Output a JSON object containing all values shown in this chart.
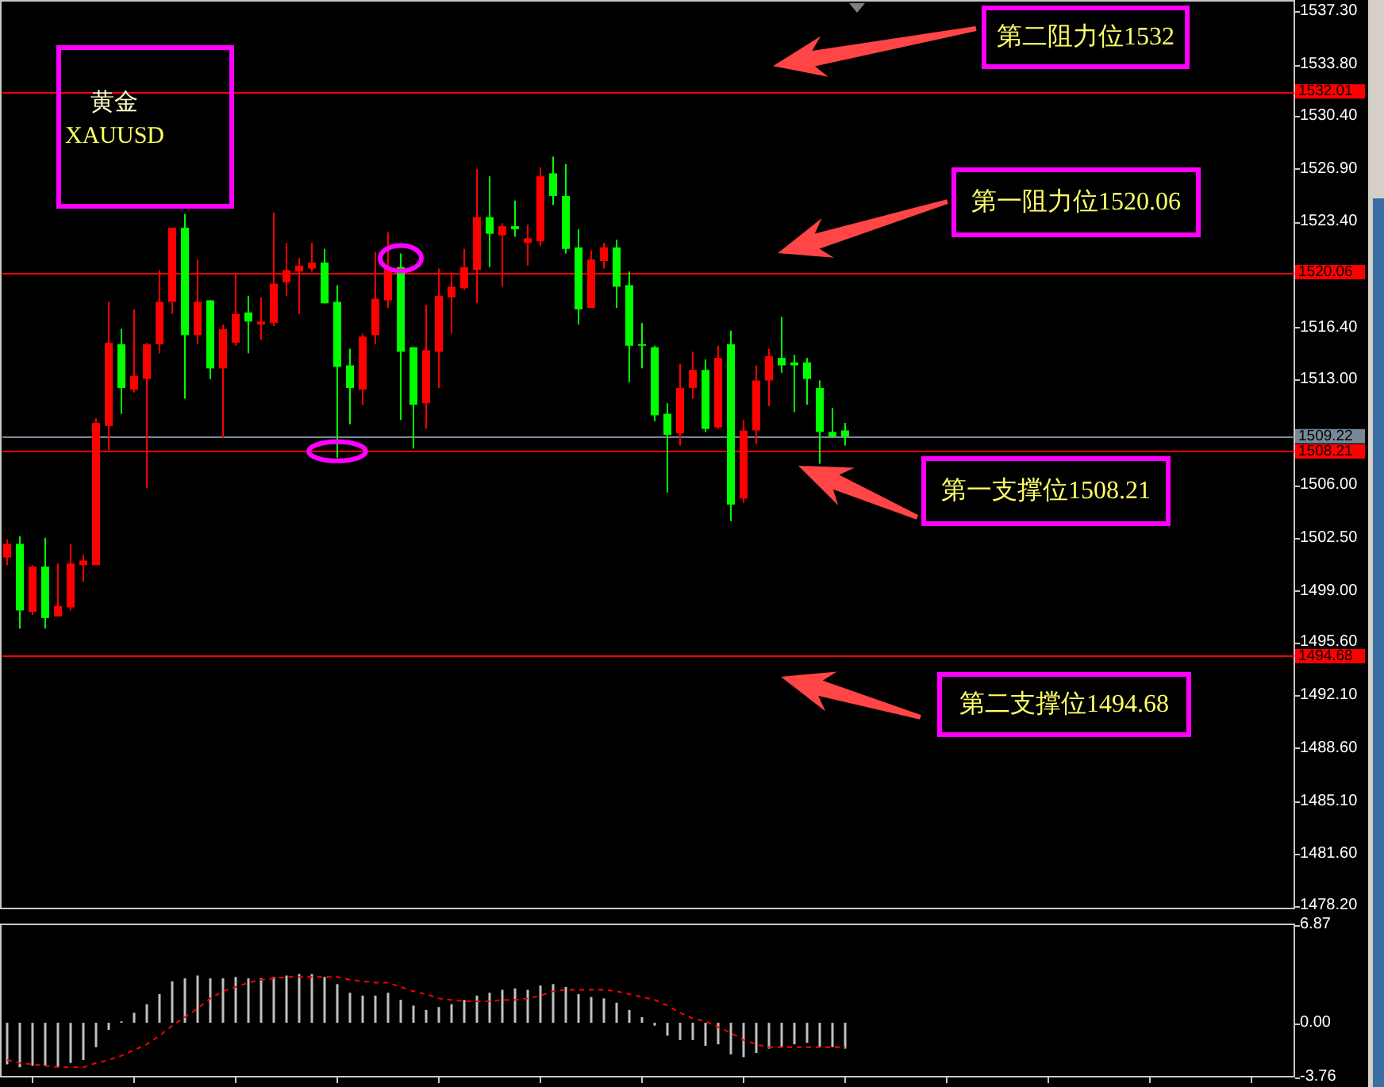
{
  "chart_data": [
    {
      "type": "candlestick",
      "title": "黄金",
      "subtitle": "XAUUSD",
      "tick_labels": "y",
      "categories": [
        null,
        null,
        null,
        null,
        null,
        null,
        null,
        null,
        null,
        null,
        null,
        null,
        null,
        null,
        null,
        null,
        null,
        null,
        null,
        null,
        null,
        null,
        null,
        null,
        null,
        null,
        null,
        null,
        null,
        null,
        null,
        null,
        null,
        null,
        null,
        null,
        null,
        null,
        null,
        null,
        null,
        null,
        null,
        null,
        null,
        null,
        null,
        null,
        null,
        null,
        null,
        null,
        null,
        null,
        null,
        null,
        null,
        null,
        null,
        null,
        null,
        null,
        null,
        null,
        null,
        null,
        null,
        null,
        null,
        null,
        null,
        null,
        null,
        null,
        null,
        null,
        null,
        null,
        null,
        null,
        null,
        null,
        null,
        null,
        null,
        null,
        null,
        null,
        null,
        null,
        null,
        null,
        null,
        null,
        null,
        null,
        null,
        null,
        null,
        null,
        null,
        null
      ],
      "ohlc": [
        [
          1501.2,
          1502.4,
          1500.7,
          1502.1
        ],
        [
          1502.1,
          1502.6,
          1496.5,
          1497.7
        ],
        [
          1497.6,
          1500.7,
          1497.4,
          1500.6
        ],
        [
          1500.6,
          1502.5,
          1496.5,
          1497.2
        ],
        [
          1497.3,
          1500.8,
          1497.3,
          1498.0
        ],
        [
          1497.9,
          1502.1,
          1497.7,
          1500.8
        ],
        [
          1500.7,
          1501.4,
          1499.6,
          1501.0
        ],
        [
          1500.7,
          1510.4,
          1500.7,
          1510.1
        ],
        [
          1509.9,
          1518.1,
          1508.3,
          1515.4
        ],
        [
          1515.3,
          1516.3,
          1510.7,
          1512.4
        ],
        [
          1512.3,
          1517.6,
          1512.1,
          1513.2
        ],
        [
          1513.0,
          1515.4,
          1505.8,
          1515.3
        ],
        [
          1515.3,
          1520.2,
          1514.7,
          1518.1
        ],
        [
          1518.1,
          1523.0,
          1517.3,
          1523.0
        ],
        [
          1523.0,
          1523.9,
          1511.7,
          1515.9
        ],
        [
          1515.9,
          1520.9,
          1515.3,
          1518.1
        ],
        [
          1518.2,
          1518.2,
          1513.0,
          1513.7
        ],
        [
          1513.7,
          1516.6,
          1509.1,
          1516.3
        ],
        [
          1515.4,
          1520.0,
          1515.2,
          1517.3
        ],
        [
          1517.4,
          1518.5,
          1514.7,
          1516.8
        ],
        [
          1516.6,
          1518.4,
          1515.6,
          1516.8
        ],
        [
          1516.7,
          1524.0,
          1516.5,
          1519.3
        ],
        [
          1519.4,
          1522.0,
          1518.5,
          1520.2
        ],
        [
          1520.1,
          1521.0,
          1517.3,
          1520.5
        ],
        [
          1520.3,
          1522.0,
          1520.1,
          1520.7
        ],
        [
          1520.7,
          1521.6,
          1518.0,
          1518.0
        ],
        [
          1518.1,
          1519.2,
          1507.8,
          1513.8
        ],
        [
          1513.9,
          1515.0,
          1510.0,
          1512.4
        ],
        [
          1512.3,
          1516.0,
          1511.3,
          1515.8
        ],
        [
          1515.9,
          1521.4,
          1515.3,
          1518.3
        ],
        [
          1518.2,
          1522.7,
          1517.7,
          1520.4
        ],
        [
          1520.4,
          1521.3,
          1510.3,
          1514.8
        ],
        [
          1515.1,
          1515.1,
          1508.4,
          1511.3
        ],
        [
          1511.4,
          1517.9,
          1509.7,
          1514.9
        ],
        [
          1514.8,
          1520.3,
          1512.4,
          1518.5
        ],
        [
          1518.4,
          1520.0,
          1516.0,
          1519.1
        ],
        [
          1519.0,
          1521.6,
          1518.9,
          1520.4
        ],
        [
          1520.2,
          1526.9,
          1518.0,
          1523.7
        ],
        [
          1523.7,
          1526.4,
          1520.4,
          1522.6
        ],
        [
          1522.5,
          1523.3,
          1519.1,
          1523.1
        ],
        [
          1523.1,
          1524.8,
          1522.4,
          1522.9
        ],
        [
          1522.0,
          1523.2,
          1520.5,
          1522.3
        ],
        [
          1522.1,
          1527.0,
          1521.8,
          1526.4
        ],
        [
          1526.6,
          1527.7,
          1524.5,
          1525.1
        ],
        [
          1525.1,
          1527.2,
          1521.3,
          1521.6
        ],
        [
          1521.7,
          1522.9,
          1516.6,
          1517.6
        ],
        [
          1517.7,
          1521.5,
          1517.7,
          1520.9
        ],
        [
          1520.8,
          1522.0,
          1520.3,
          1521.7
        ],
        [
          1521.7,
          1522.2,
          1517.7,
          1519.1
        ],
        [
          1519.2,
          1520.1,
          1512.8,
          1515.2
        ],
        [
          1515.3,
          1516.7,
          1513.7,
          1515.2
        ],
        [
          1515.1,
          1515.2,
          1510.2,
          1510.6
        ],
        [
          1510.7,
          1511.4,
          1505.5,
          1509.3
        ],
        [
          1509.4,
          1514.0,
          1508.6,
          1512.4
        ],
        [
          1512.4,
          1514.8,
          1511.7,
          1513.6
        ],
        [
          1513.6,
          1514.3,
          1509.5,
          1509.7
        ],
        [
          1509.8,
          1515.2,
          1509.7,
          1514.4
        ],
        [
          1515.3,
          1516.2,
          1503.6,
          1504.7
        ],
        [
          1505.1,
          1510.3,
          1504.8,
          1509.6
        ],
        [
          1509.6,
          1513.9,
          1508.7,
          1512.9
        ],
        [
          1512.9,
          1515.0,
          1511.2,
          1514.5
        ],
        [
          1514.4,
          1517.1,
          1513.4,
          1513.9
        ],
        [
          1514.1,
          1514.6,
          1510.8,
          1513.9
        ],
        [
          1514.1,
          1514.4,
          1511.3,
          1513.0
        ],
        [
          1512.4,
          1512.9,
          1507.4,
          1509.5
        ],
        [
          1509.5,
          1511.1,
          1509.1,
          1509.2
        ],
        [
          1509.6,
          1510.1,
          1508.6,
          1509.2
        ],
        null,
        null,
        null,
        null,
        null,
        null,
        null,
        null,
        null,
        null,
        null,
        null,
        null,
        null,
        null,
        null,
        null,
        null,
        null,
        null,
        null,
        null,
        null,
        null,
        null,
        null,
        null,
        null,
        null,
        null,
        null,
        null,
        null,
        null,
        null
      ],
      "colors": [
        "#ff0000",
        "#00ff00",
        "#ff0000",
        "#00ff00",
        "#ff0000",
        "#ff0000",
        "#ff0000",
        "#ff0000",
        "#ff0000",
        "#00ff00",
        "#ff0000",
        "#ff0000",
        "#ff0000",
        "#ff0000",
        "#00ff00",
        "#ff0000",
        "#00ff00",
        "#ff0000",
        "#ff0000",
        "#00ff00",
        "#ff0000",
        "#ff0000",
        "#ff0000",
        "#ff0000",
        "#ff0000",
        "#00ff00",
        "#00ff00",
        "#00ff00",
        "#ff0000",
        "#ff0000",
        "#ff0000",
        "#00ff00",
        "#00ff00",
        "#ff0000",
        "#ff0000",
        "#ff0000",
        "#ff0000",
        "#ff0000",
        "#00ff00",
        "#ff0000",
        "#00ff00",
        "#ff0000",
        "#ff0000",
        "#00ff00",
        "#00ff00",
        "#00ff00",
        "#ff0000",
        "#ff0000",
        "#00ff00",
        "#00ff00",
        "#00ff00",
        "#00ff00",
        "#00ff00",
        "#ff0000",
        "#ff0000",
        "#00ff00",
        "#ff0000",
        "#00ff00",
        "#ff0000",
        "#ff0000",
        "#ff0000",
        "#00ff00",
        "#00ff00",
        "#00ff00",
        "#00ff00",
        "#00ff00",
        "#00ff00",
        null,
        null,
        null,
        null,
        null,
        null,
        null,
        null,
        null,
        null,
        null,
        null,
        null,
        null,
        null,
        null,
        null,
        null,
        null,
        null,
        null,
        null,
        null,
        null,
        null,
        null,
        null,
        null,
        null,
        null,
        null,
        null,
        null,
        null,
        null
      ],
      "ylim": [
        1478.0,
        1538.0
      ],
      "yticks": [
        {
          "value": 1537.3,
          "label": "1537.30"
        },
        {
          "value": 1533.8,
          "label": "1533.80"
        },
        {
          "value": 1530.4,
          "label": "1530.40"
        },
        {
          "value": 1526.9,
          "label": "1526.90"
        },
        {
          "value": 1523.4,
          "label": "1523.40"
        },
        {
          "value": 1516.4,
          "label": "1516.40"
        },
        {
          "value": 1513,
          "label": "1513.00"
        },
        {
          "value": 1506,
          "label": "1506.00"
        },
        {
          "value": 1502.5,
          "label": "1502.50"
        },
        {
          "value": 1499,
          "label": "1499.00"
        },
        {
          "value": 1495.6,
          "label": "1495.60"
        },
        {
          "value": 1492.1,
          "label": "1492.10"
        },
        {
          "value": 1488.6,
          "label": "1488.60"
        },
        {
          "value": 1485.1,
          "label": "1485.10"
        },
        {
          "value": 1481.6,
          "label": "1481.60"
        },
        {
          "value": 1478.2,
          "label": "1478.20"
        }
      ],
      "ref_lines": [
        {
          "axis": "y",
          "value": 1532.01,
          "label": "1532.01",
          "color": "#ff0000"
        },
        {
          "axis": "y",
          "value": 1520.06,
          "label": "1520.06",
          "color": "#ff0000"
        },
        {
          "axis": "y",
          "value": 1509.22,
          "label": "1509.22",
          "color": "#778899"
        },
        {
          "axis": "y",
          "value": 1508.21,
          "label": "1508.21",
          "color": "#ff0000"
        },
        {
          "axis": "y",
          "value": 1494.68,
          "label": "1494.68",
          "color": "#ff0000"
        }
      ],
      "annotations": [
        {
          "text": "第二阻力位1532",
          "y": 1532.01
        },
        {
          "text": "第一阻力位1520.06",
          "y": 1520.06
        },
        {
          "text": "第一支撑位1508.21",
          "y": 1508.21
        },
        {
          "text": "第二支撑位1494.68",
          "y": 1494.68
        }
      ]
    },
    {
      "type": "bar",
      "tick_labels": "y",
      "categories": [
        null,
        null,
        null,
        null,
        null,
        null,
        null,
        null,
        null,
        null,
        null,
        null,
        null,
        null,
        null,
        null,
        null,
        null,
        null,
        null,
        null,
        null,
        null,
        null,
        null,
        null,
        null,
        null,
        null,
        null,
        null,
        null,
        null,
        null,
        null,
        null,
        null,
        null,
        null,
        null,
        null,
        null,
        null,
        null,
        null,
        null,
        null,
        null,
        null,
        null,
        null,
        null,
        null,
        null,
        null,
        null,
        null,
        null,
        null,
        null,
        null,
        null,
        null,
        null,
        null,
        null,
        null,
        null,
        null,
        null,
        null,
        null,
        null,
        null,
        null,
        null,
        null,
        null,
        null,
        null,
        null,
        null,
        null,
        null,
        null,
        null,
        null,
        null,
        null,
        null,
        null,
        null,
        null,
        null,
        null,
        null,
        null,
        null,
        null,
        null,
        null,
        null
      ],
      "series": [
        {
          "color": "#c0c0c0",
          "values": [
            -2.9,
            -3.1,
            -3.0,
            -3.0,
            -3.1,
            -2.8,
            -2.6,
            -1.7,
            -0.5,
            0.1,
            0.7,
            1.3,
            2.0,
            2.9,
            3.1,
            3.3,
            3.1,
            3.1,
            3.2,
            3.1,
            3.1,
            3.2,
            3.3,
            3.4,
            3.4,
            3.2,
            2.7,
            2.1,
            1.9,
            1.9,
            2.1,
            1.6,
            1.2,
            0.9,
            1.1,
            1.3,
            1.6,
            1.9,
            2.1,
            2.3,
            2.4,
            2.3,
            2.6,
            2.7,
            2.5,
            2.0,
            1.8,
            1.7,
            1.4,
            0.9,
            0.4,
            -0.2,
            -0.9,
            -1.2,
            -1.2,
            -1.6,
            -1.5,
            -2.2,
            -2.4,
            -2.1,
            -1.8,
            -1.7,
            -1.5,
            -1.4,
            -1.7,
            -1.7,
            -1.8,
            null,
            null,
            null,
            null,
            null,
            null,
            null,
            null,
            null,
            null,
            null,
            null,
            null,
            null,
            null,
            null,
            null,
            null,
            null,
            null,
            null,
            null,
            null,
            null,
            null,
            null,
            null,
            null,
            null,
            null,
            null,
            null,
            null,
            null,
            null
          ]
        },
        {
          "type": "line",
          "color": "#ff0000",
          "line_style": "dashed",
          "values": [
            -2.6,
            -2.8,
            -2.9,
            -3.0,
            -3.1,
            -3.1,
            -3.1,
            -2.8,
            -2.6,
            -2.3,
            -1.9,
            -1.5,
            -0.9,
            -0.2,
            0.4,
            1.0,
            1.7,
            2.2,
            2.5,
            2.8,
            3.0,
            3.1,
            3.2,
            3.2,
            3.2,
            3.2,
            3.2,
            3.0,
            2.9,
            2.8,
            2.8,
            2.5,
            2.2,
            2.0,
            1.7,
            1.6,
            1.5,
            1.5,
            1.5,
            1.6,
            1.6,
            1.7,
            1.9,
            2.2,
            2.3,
            2.3,
            2.3,
            2.3,
            2.2,
            2.0,
            1.8,
            1.6,
            1.2,
            0.7,
            0.3,
            0.1,
            -0.3,
            -0.7,
            -1.2,
            -1.5,
            -1.7,
            -1.7,
            -1.7,
            -1.7,
            -1.7,
            -1.7,
            -1.7,
            null,
            null,
            null,
            null,
            null,
            null,
            null,
            null,
            null,
            null,
            null,
            null,
            null,
            null,
            null,
            null,
            null,
            null,
            null,
            null,
            null,
            null,
            null,
            null,
            null,
            null,
            null,
            null,
            null,
            null,
            null,
            null,
            null,
            null,
            null
          ]
        }
      ],
      "ylim": [
        -3.76,
        6.87
      ],
      "yticks": [
        {
          "value": 6.87,
          "label": "6.87"
        },
        {
          "value": 0,
          "label": "0.00"
        },
        {
          "value": -3.76,
          "label": "-3.76"
        }
      ]
    }
  ]
}
